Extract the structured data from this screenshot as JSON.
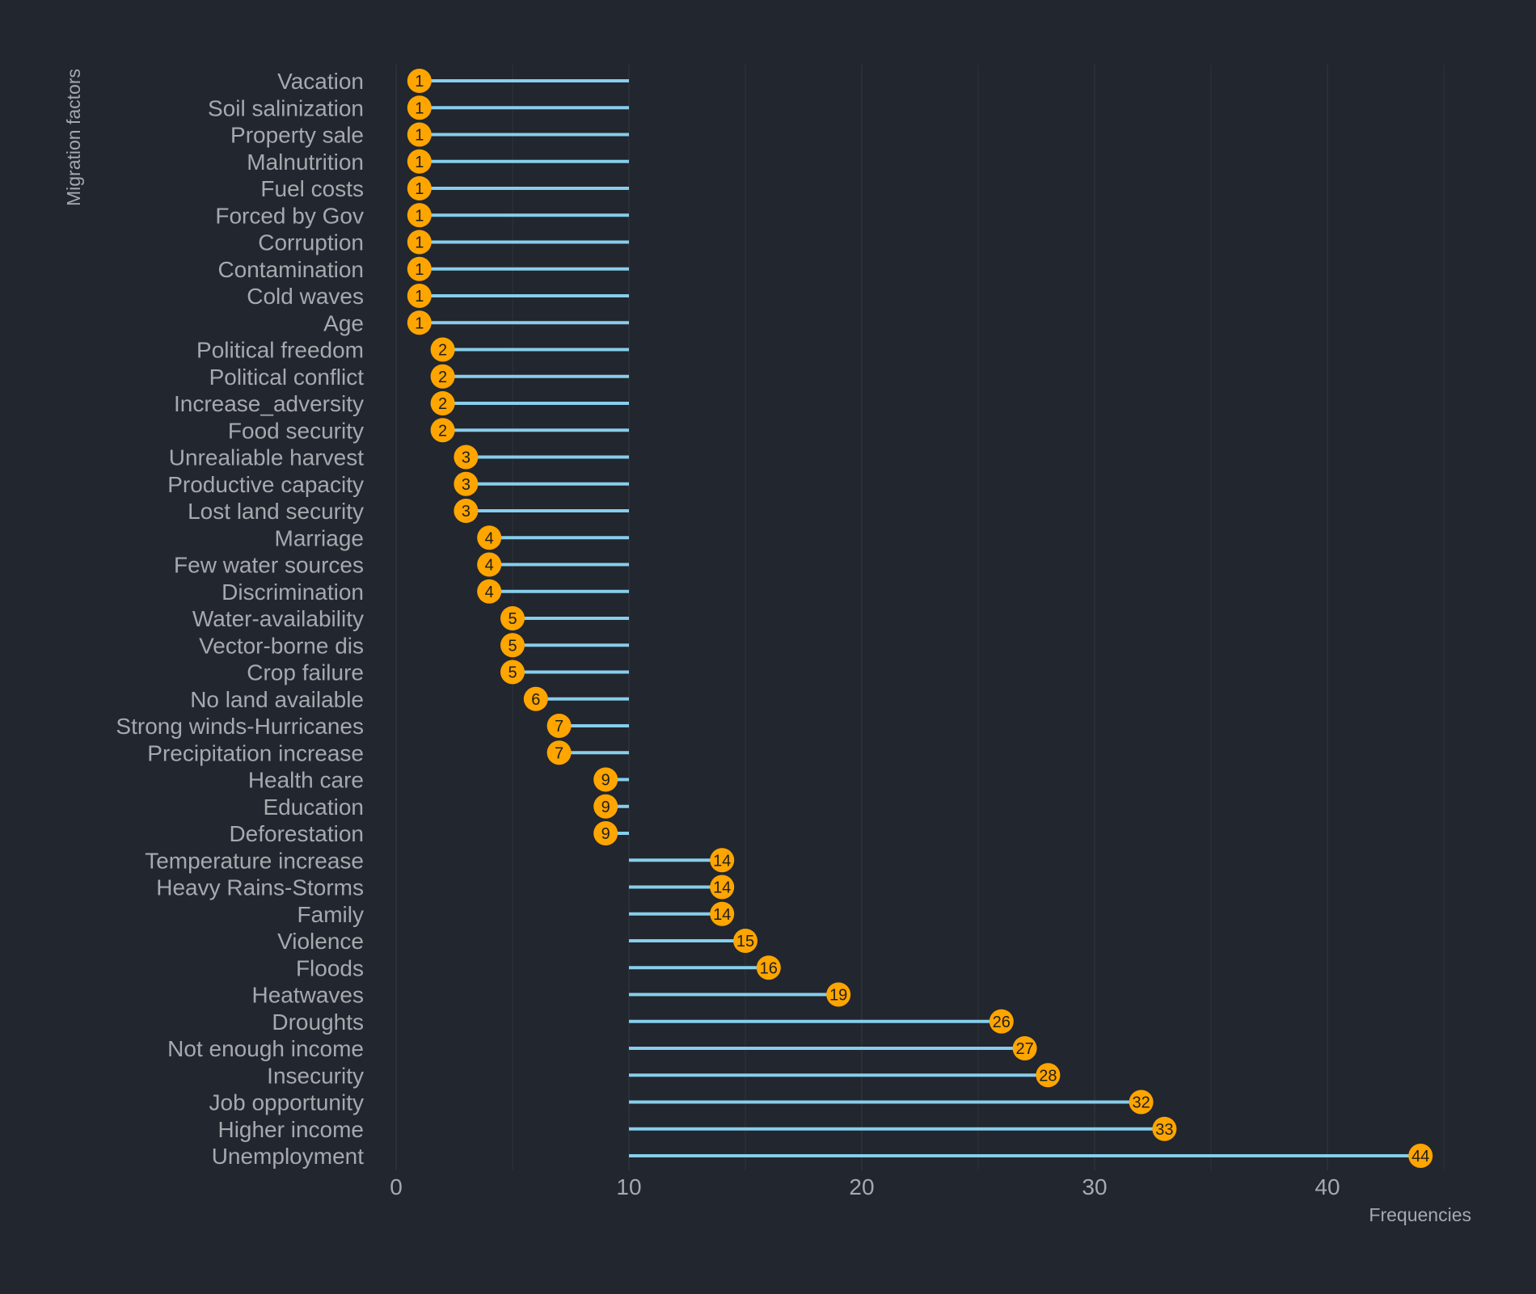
{
  "colors": {
    "background": "#22262e",
    "grid": "#2f343d",
    "stem": "#87ceeb",
    "dot": "#ffa500",
    "dot_text": "#1e1e1e",
    "text": "#a6a9ae"
  },
  "chart_data": {
    "type": "lollipop",
    "orientation": "horizontal",
    "baseline": 10,
    "xlabel": "Frequencies",
    "ylabel": "Migration factors",
    "xlim": [
      0,
      45
    ],
    "xticks": [
      0,
      10,
      20,
      30,
      40
    ],
    "grid": true,
    "legend": "none",
    "categories": [
      "Vacation",
      "Soil salinization",
      "Property sale",
      "Malnutrition",
      "Fuel costs",
      "Forced by Gov",
      "Corruption",
      "Contamination",
      "Cold waves",
      "Age",
      "Political freedom",
      "Political conflict",
      "Increase_adversity",
      "Food security",
      "Unrealiable harvest",
      "Productive capacity",
      "Lost land security",
      "Marriage",
      "Few water sources",
      "Discrimination",
      "Water-availability",
      "Vector-borne dis",
      "Crop failure",
      "No land available",
      "Strong winds-Hurricanes",
      "Precipitation increase",
      "Health care",
      "Education",
      "Deforestation",
      "Temperature increase",
      "Heavy Rains-Storms",
      "Family",
      "Violence",
      "Floods",
      "Heatwaves",
      "Droughts",
      "Not enough income",
      "Insecurity",
      "Job opportunity",
      "Higher income",
      "Unemployment"
    ],
    "values": [
      1,
      1,
      1,
      1,
      1,
      1,
      1,
      1,
      1,
      1,
      2,
      2,
      2,
      2,
      3,
      3,
      3,
      4,
      4,
      4,
      5,
      5,
      5,
      6,
      7,
      7,
      9,
      9,
      9,
      14,
      14,
      14,
      15,
      16,
      19,
      26,
      27,
      28,
      32,
      33,
      44
    ]
  }
}
